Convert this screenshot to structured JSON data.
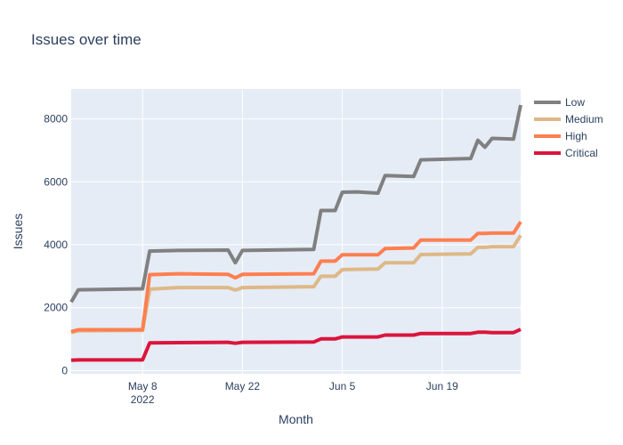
{
  "chart_data": {
    "type": "line",
    "title": "Issues over time",
    "xlabel": "Month",
    "ylabel": "Issues",
    "x_range": [
      "2022-04-28",
      "2022-06-30"
    ],
    "ylim": [
      -100,
      8950
    ],
    "y_ticks": [
      0,
      2000,
      4000,
      6000,
      8000
    ],
    "x_ticks": [
      {
        "date": "2022-05-08",
        "label": "May 8",
        "sublabel": "2022"
      },
      {
        "date": "2022-05-22",
        "label": "May 22",
        "sublabel": ""
      },
      {
        "date": "2022-06-05",
        "label": "Jun 5",
        "sublabel": ""
      },
      {
        "date": "2022-06-19",
        "label": "Jun 19",
        "sublabel": ""
      }
    ],
    "grid": true,
    "legend_position": "top-right",
    "x": [
      "2022-04-28",
      "2022-04-29",
      "2022-05-08",
      "2022-05-09",
      "2022-05-13",
      "2022-05-20",
      "2022-05-21",
      "2022-05-22",
      "2022-06-01",
      "2022-06-02",
      "2022-06-04",
      "2022-06-05",
      "2022-06-07",
      "2022-06-10",
      "2022-06-11",
      "2022-06-15",
      "2022-06-16",
      "2022-06-23",
      "2022-06-24",
      "2022-06-25",
      "2022-06-26",
      "2022-06-29",
      "2022-06-30"
    ],
    "series": [
      {
        "name": "Low",
        "color": "#808080",
        "values": [
          2180,
          2570,
          2600,
          3800,
          3820,
          3830,
          3430,
          3820,
          3850,
          5090,
          5090,
          5670,
          5680,
          5640,
          6200,
          6170,
          6700,
          6740,
          7320,
          7100,
          7380,
          7360,
          8440
        ]
      },
      {
        "name": "Medium",
        "color": "#deb887",
        "values": [
          1210,
          1270,
          1280,
          2590,
          2640,
          2640,
          2560,
          2640,
          2670,
          3000,
          3000,
          3210,
          3220,
          3230,
          3430,
          3430,
          3690,
          3710,
          3920,
          3920,
          3940,
          3940,
          4300
        ]
      },
      {
        "name": "High",
        "color": "#ff7f50",
        "values": [
          1240,
          1300,
          1300,
          3050,
          3080,
          3060,
          2950,
          3060,
          3080,
          3480,
          3480,
          3680,
          3680,
          3680,
          3880,
          3900,
          4150,
          4150,
          4360,
          4360,
          4370,
          4370,
          4730
        ]
      },
      {
        "name": "Critical",
        "color": "#dc143c",
        "values": [
          330,
          340,
          340,
          880,
          890,
          900,
          870,
          900,
          910,
          1010,
          1010,
          1070,
          1070,
          1070,
          1130,
          1130,
          1180,
          1180,
          1220,
          1220,
          1210,
          1210,
          1310
        ]
      }
    ]
  }
}
